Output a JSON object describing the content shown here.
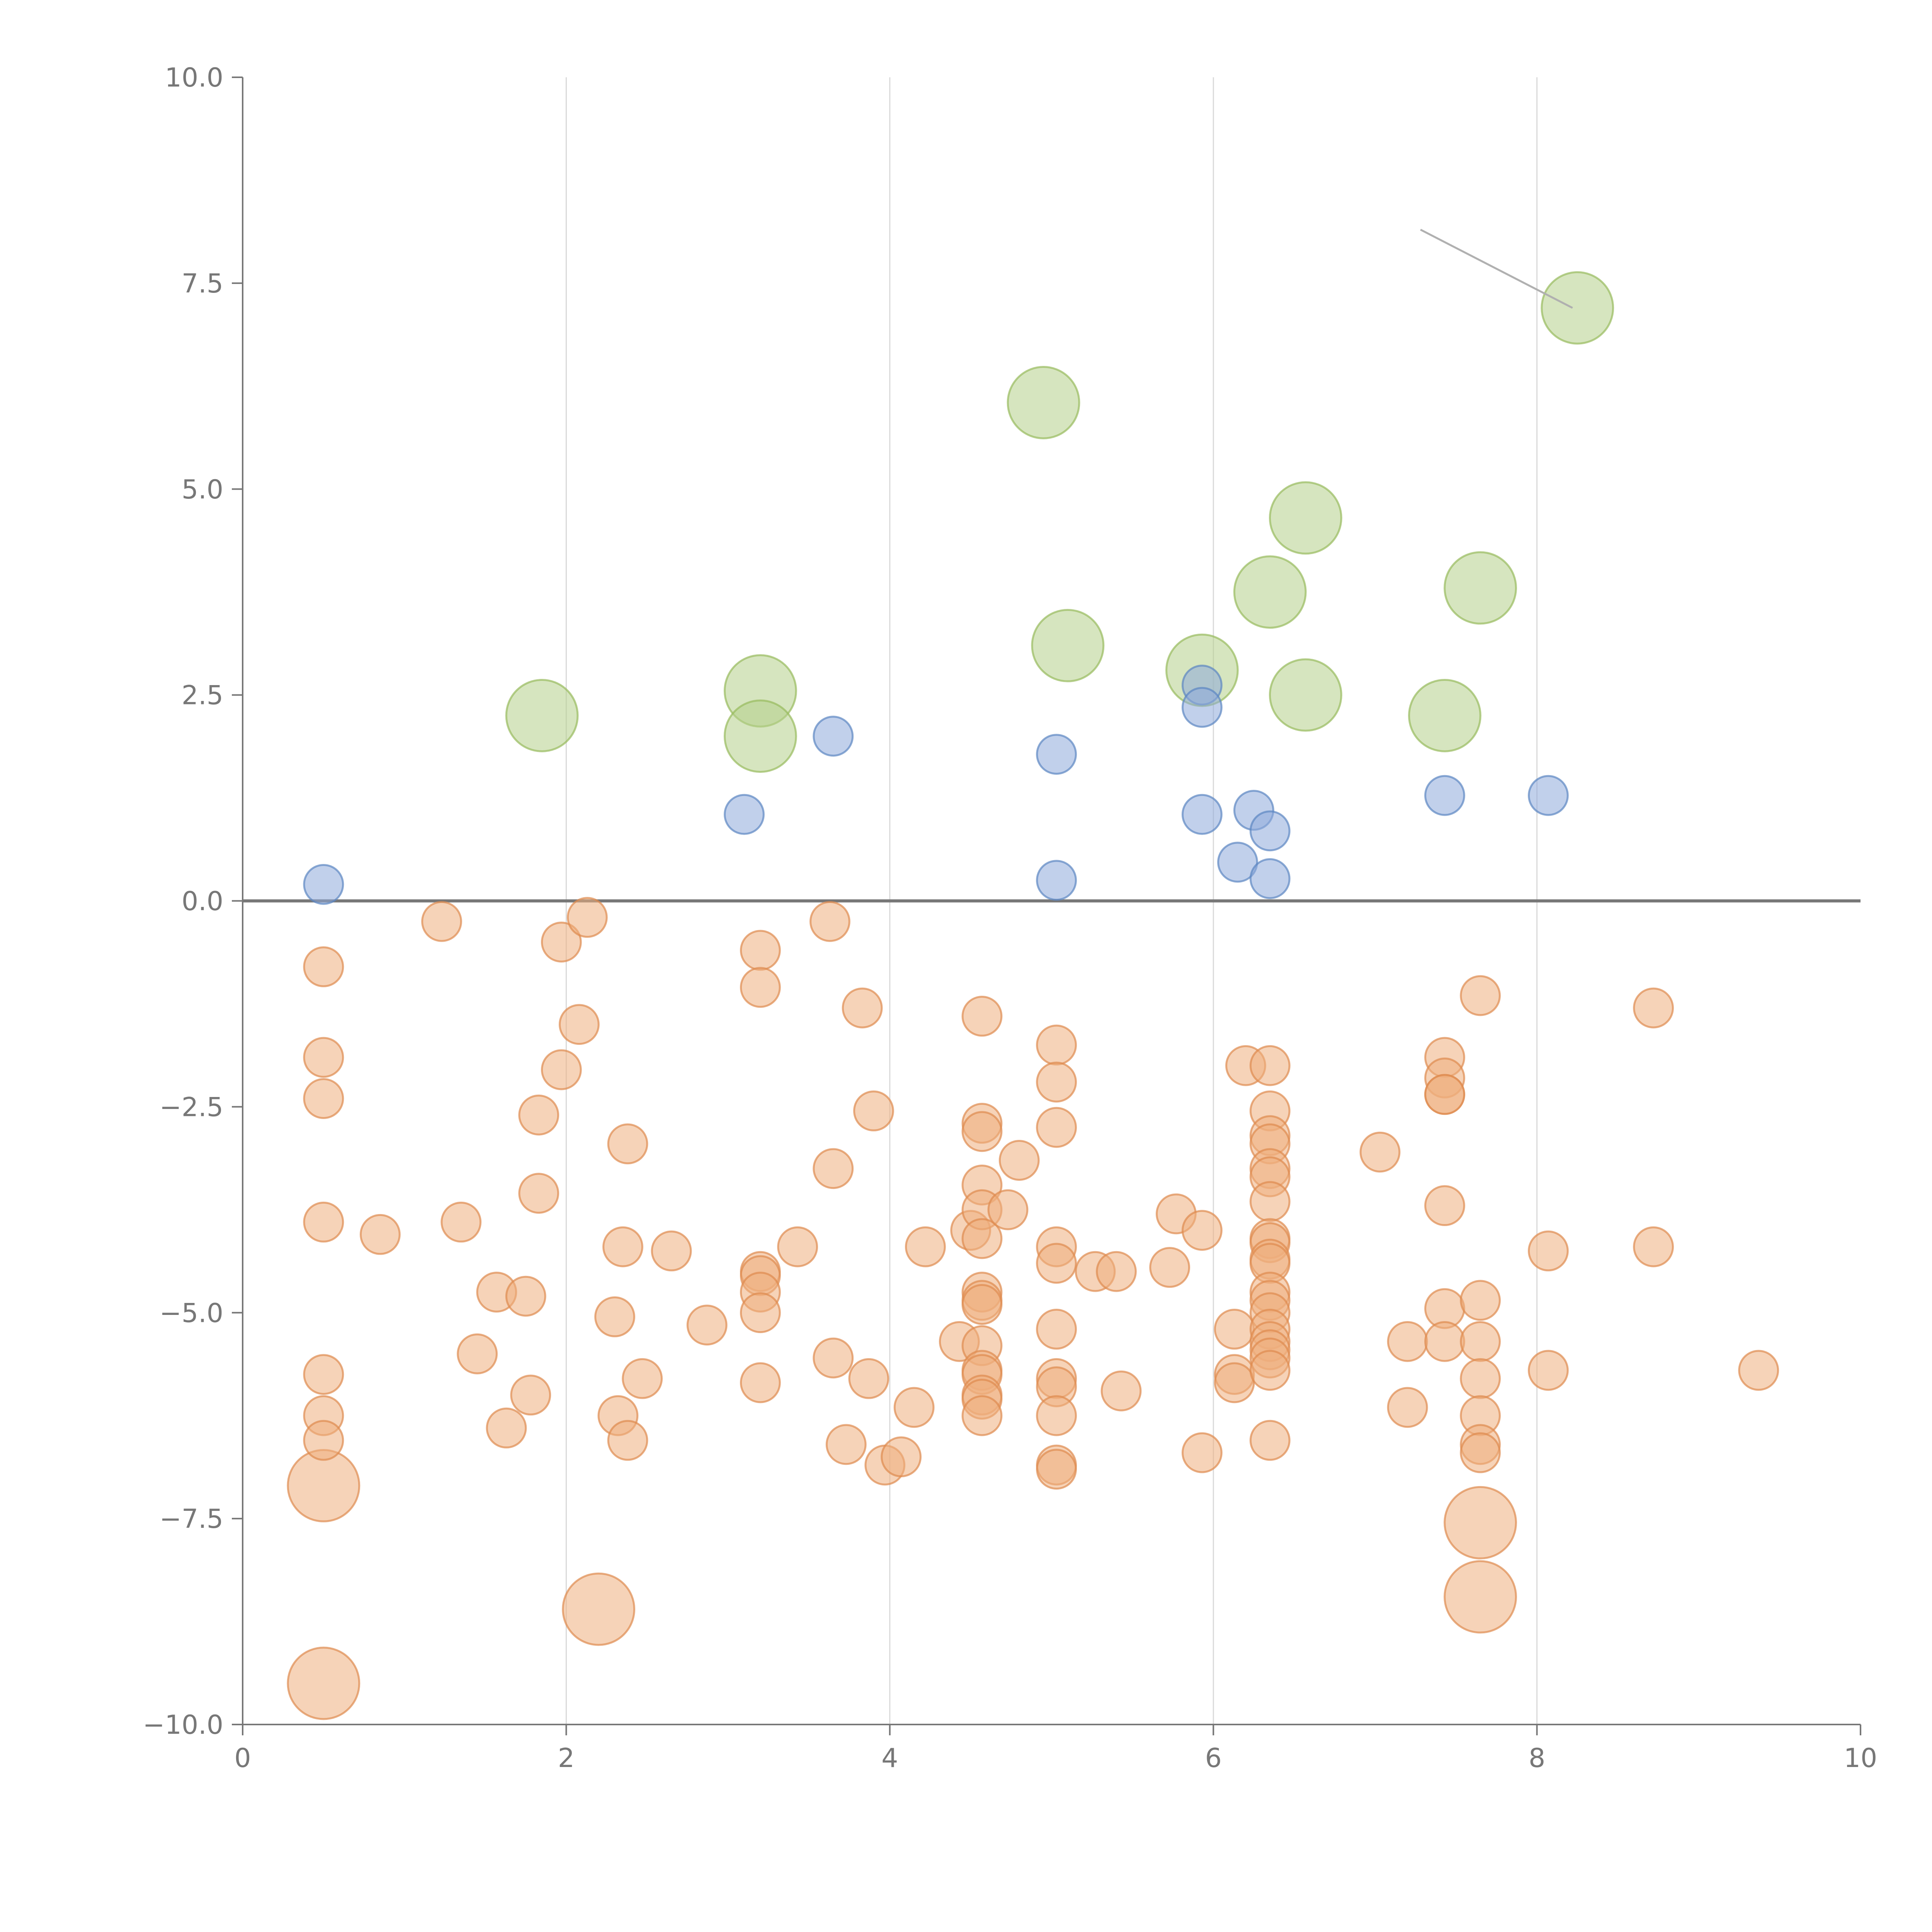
{
  "chart_data": {
    "type": "scatter",
    "title": "",
    "xlabel": "",
    "ylabel": "",
    "xlim": [
      0,
      10
    ],
    "ylim": [
      -10,
      10
    ],
    "x_ticks": [
      0,
      2,
      4,
      6,
      8,
      10
    ],
    "x_tick_labels": [
      "0",
      "2",
      "4",
      "6",
      "8",
      "10"
    ],
    "y_ticks": [
      10,
      7.5,
      5,
      2.5,
      0,
      -2.5,
      -5,
      -7.5,
      -10
    ],
    "y_tick_labels": [
      "10.0",
      "7.5",
      "5.0",
      "2.5",
      "0.0",
      "−2.5",
      "−5.0",
      "−7.5",
      "−10.0"
    ],
    "grid_x": true,
    "zero_line": 0,
    "colors": {
      "green_fill": "#b5d08a",
      "green_stroke": "#97bb5c",
      "blue_fill": "#8eaadb",
      "blue_stroke": "#5b86c2",
      "orange_fill": "#eeaf7d",
      "orange_stroke": "#de8a4e"
    },
    "series": [
      {
        "name": "green",
        "size": 2.2,
        "points": [
          [
            1.85,
            2.25
          ],
          [
            3.2,
            2.55
          ],
          [
            3.2,
            2.0
          ],
          [
            4.95,
            6.05
          ],
          [
            5.1,
            3.1
          ],
          [
            5.93,
            2.8
          ],
          [
            6.35,
            3.75
          ],
          [
            6.57,
            4.65
          ],
          [
            6.57,
            2.5
          ],
          [
            7.43,
            2.25
          ],
          [
            7.65,
            3.8
          ],
          [
            8.25,
            7.2
          ]
        ]
      },
      {
        "name": "blue",
        "size": 1.2,
        "points": [
          [
            0.5,
            0.2
          ],
          [
            3.1,
            1.05
          ],
          [
            3.65,
            2.0
          ],
          [
            5.03,
            1.78
          ],
          [
            5.03,
            0.25
          ],
          [
            5.93,
            2.62
          ],
          [
            5.93,
            2.35
          ],
          [
            5.93,
            1.05
          ],
          [
            6.15,
            0.47
          ],
          [
            6.25,
            1.1
          ],
          [
            6.35,
            0.85
          ],
          [
            6.35,
            0.27
          ],
          [
            7.43,
            1.28
          ],
          [
            8.07,
            1.28
          ]
        ]
      },
      {
        "name": "orange-large",
        "size": 2.2,
        "points": [
          [
            0.5,
            -7.1
          ],
          [
            0.5,
            -9.5
          ],
          [
            2.2,
            -8.6
          ],
          [
            7.65,
            -7.55
          ],
          [
            7.65,
            -8.45
          ]
        ]
      },
      {
        "name": "orange",
        "size": 1.2,
        "points": [
          [
            0.5,
            -0.8
          ],
          [
            0.5,
            -1.9
          ],
          [
            0.5,
            -2.4
          ],
          [
            0.5,
            -3.9
          ],
          [
            0.5,
            -5.75
          ],
          [
            0.5,
            -6.25
          ],
          [
            0.5,
            -6.55
          ],
          [
            0.85,
            -4.05
          ],
          [
            1.23,
            -0.25
          ],
          [
            1.35,
            -3.9
          ],
          [
            1.45,
            -5.5
          ],
          [
            1.57,
            -4.75
          ],
          [
            1.63,
            -6.4
          ],
          [
            1.75,
            -4.8
          ],
          [
            1.78,
            -6.0
          ],
          [
            1.83,
            -2.6
          ],
          [
            1.83,
            -3.55
          ],
          [
            1.97,
            -0.5
          ],
          [
            1.97,
            -2.05
          ],
          [
            2.08,
            -1.5
          ],
          [
            2.13,
            -0.2
          ],
          [
            2.3,
            -5.05
          ],
          [
            2.32,
            -6.25
          ],
          [
            2.35,
            -4.2
          ],
          [
            2.38,
            -2.95
          ],
          [
            2.38,
            -6.55
          ],
          [
            2.47,
            -5.8
          ],
          [
            2.65,
            -4.25
          ],
          [
            2.87,
            -5.15
          ],
          [
            3.2,
            -0.6
          ],
          [
            3.2,
            -1.05
          ],
          [
            3.2,
            -4.5
          ],
          [
            3.2,
            -4.55
          ],
          [
            3.2,
            -4.75
          ],
          [
            3.2,
            -5.0
          ],
          [
            3.2,
            -5.85
          ],
          [
            3.43,
            -4.2
          ],
          [
            3.63,
            -0.25
          ],
          [
            3.65,
            -3.25
          ],
          [
            3.65,
            -5.55
          ],
          [
            3.73,
            -6.6
          ],
          [
            3.83,
            -1.3
          ],
          [
            3.87,
            -5.8
          ],
          [
            3.9,
            -2.55
          ],
          [
            3.97,
            -6.85
          ],
          [
            4.07,
            -6.75
          ],
          [
            4.15,
            -6.15
          ],
          [
            4.22,
            -4.2
          ],
          [
            4.43,
            -5.35
          ],
          [
            4.5,
            -4.0
          ],
          [
            4.57,
            -1.4
          ],
          [
            4.57,
            -2.7
          ],
          [
            4.57,
            -2.8
          ],
          [
            4.57,
            -3.45
          ],
          [
            4.57,
            -3.75
          ],
          [
            4.57,
            -4.1
          ],
          [
            4.57,
            -4.75
          ],
          [
            4.57,
            -4.85
          ],
          [
            4.57,
            -4.9
          ],
          [
            4.57,
            -5.4
          ],
          [
            4.57,
            -5.7
          ],
          [
            4.57,
            -5.75
          ],
          [
            4.57,
            -6.0
          ],
          [
            4.57,
            -6.05
          ],
          [
            4.57,
            -6.25
          ],
          [
            4.73,
            -3.75
          ],
          [
            4.8,
            -3.15
          ],
          [
            5.03,
            -1.75
          ],
          [
            5.03,
            -2.2
          ],
          [
            5.03,
            -2.75
          ],
          [
            5.03,
            -4.2
          ],
          [
            5.03,
            -4.4
          ],
          [
            5.03,
            -5.2
          ],
          [
            5.03,
            -5.8
          ],
          [
            5.03,
            -5.9
          ],
          [
            5.03,
            -6.25
          ],
          [
            5.03,
            -6.85
          ],
          [
            5.03,
            -6.9
          ],
          [
            5.27,
            -4.5
          ],
          [
            5.4,
            -4.5
          ],
          [
            5.43,
            -5.95
          ],
          [
            5.73,
            -4.45
          ],
          [
            5.77,
            -3.8
          ],
          [
            5.93,
            -4.0
          ],
          [
            5.93,
            -6.7
          ],
          [
            6.13,
            -5.2
          ],
          [
            6.13,
            -5.75
          ],
          [
            6.13,
            -5.85
          ],
          [
            6.2,
            -2.0
          ],
          [
            6.35,
            -2.0
          ],
          [
            6.35,
            -2.55
          ],
          [
            6.35,
            -2.85
          ],
          [
            6.35,
            -2.95
          ],
          [
            6.35,
            -3.25
          ],
          [
            6.35,
            -3.35
          ],
          [
            6.35,
            -3.65
          ],
          [
            6.35,
            -4.1
          ],
          [
            6.35,
            -4.15
          ],
          [
            6.35,
            -4.35
          ],
          [
            6.35,
            -4.4
          ],
          [
            6.35,
            -4.75
          ],
          [
            6.35,
            -4.85
          ],
          [
            6.35,
            -5.0
          ],
          [
            6.35,
            -5.2
          ],
          [
            6.35,
            -5.35
          ],
          [
            6.35,
            -5.45
          ],
          [
            6.35,
            -5.55
          ],
          [
            6.35,
            -5.7
          ],
          [
            6.35,
            -6.55
          ],
          [
            7.03,
            -3.05
          ],
          [
            7.2,
            -5.35
          ],
          [
            7.2,
            -6.15
          ],
          [
            7.43,
            -1.9
          ],
          [
            7.43,
            -2.15
          ],
          [
            7.43,
            -2.35
          ],
          [
            7.43,
            -2.35
          ],
          [
            7.43,
            -3.7
          ],
          [
            7.43,
            -4.95
          ],
          [
            7.43,
            -5.35
          ],
          [
            7.65,
            -1.15
          ],
          [
            7.65,
            -4.85
          ],
          [
            7.65,
            -5.35
          ],
          [
            7.65,
            -5.8
          ],
          [
            7.65,
            -6.25
          ],
          [
            7.65,
            -6.6
          ],
          [
            7.65,
            -6.7
          ],
          [
            8.07,
            -4.25
          ],
          [
            8.07,
            -5.7
          ],
          [
            8.72,
            -1.3
          ],
          [
            8.72,
            -4.2
          ],
          [
            9.37,
            -5.7
          ]
        ]
      }
    ],
    "annotations": [
      {
        "from": [
          7.28,
          8.15
        ],
        "to": [
          8.22,
          7.2
        ]
      }
    ]
  }
}
